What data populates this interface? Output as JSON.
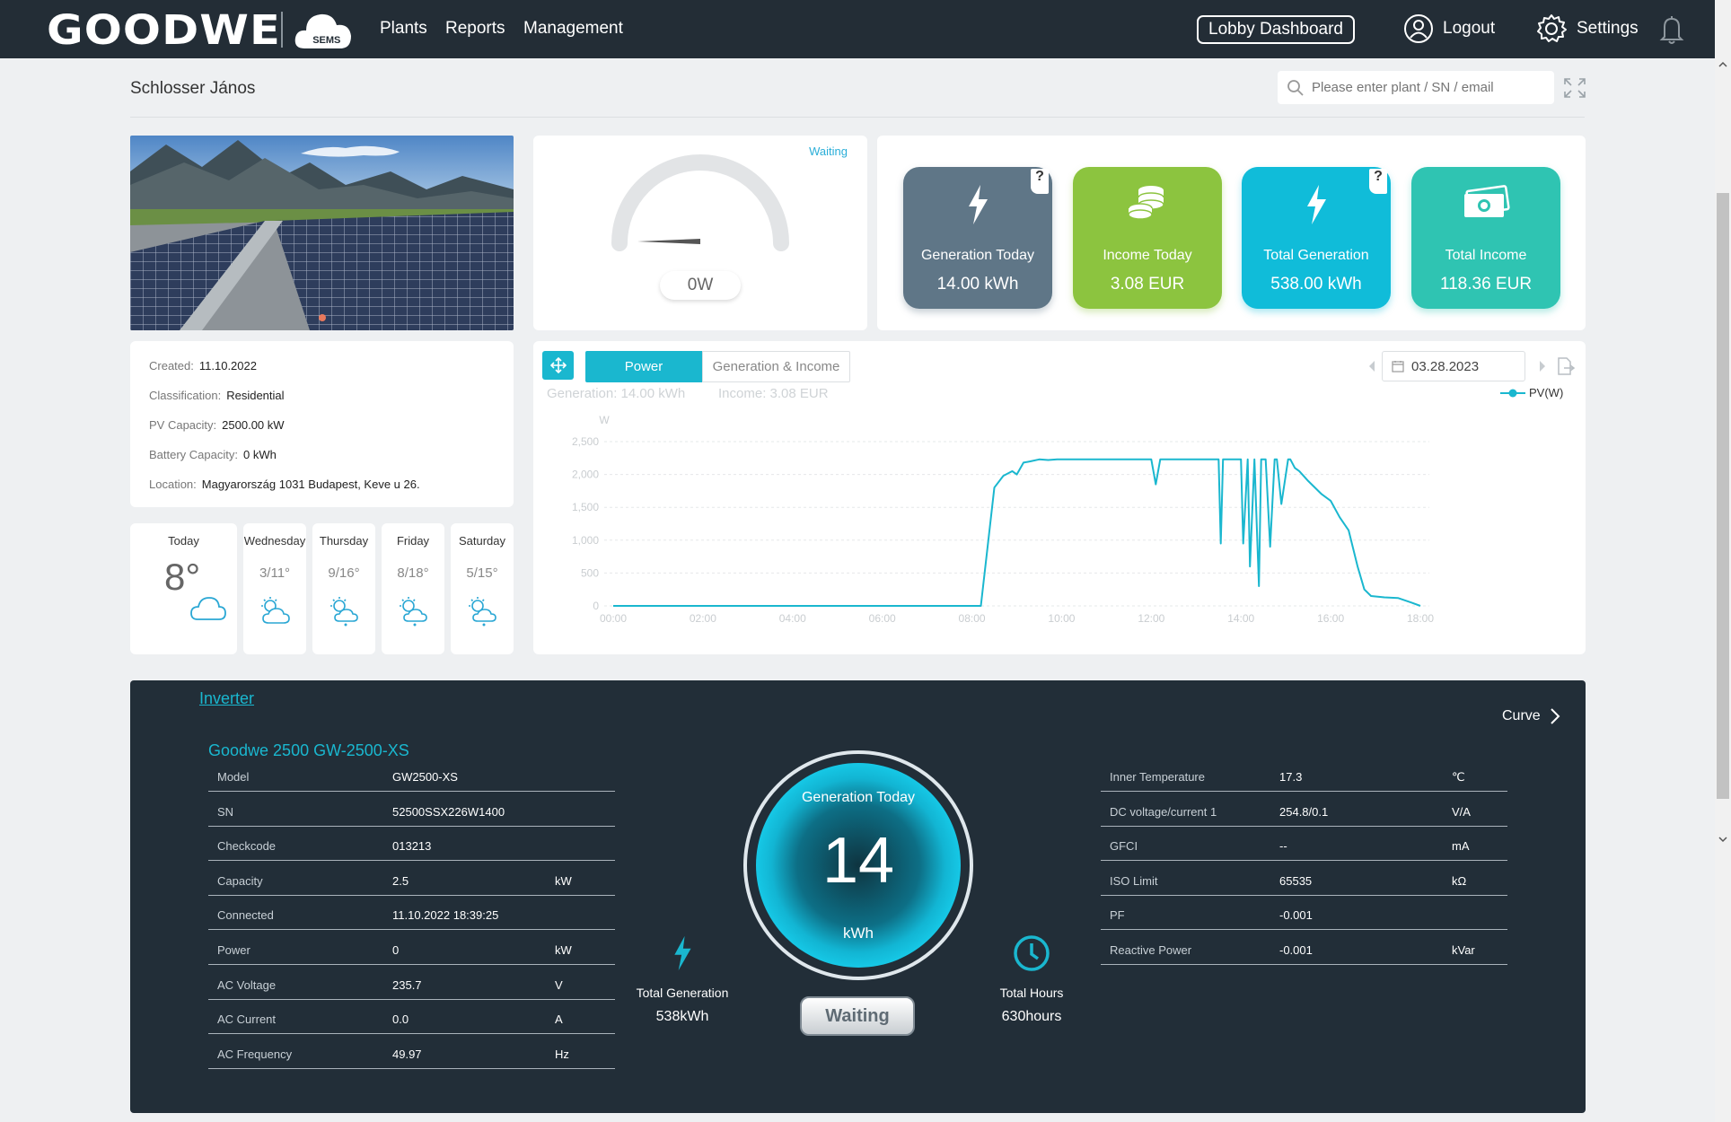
{
  "nav": {
    "logo": "GOODWE",
    "logo_sub": "SEMS",
    "links": [
      "Plants",
      "Reports",
      "Management"
    ],
    "lobby": "Lobby Dashboard",
    "logout": "Logout",
    "settings": "Settings"
  },
  "header": {
    "title": "Schlosser János",
    "search_placeholder": "Please enter plant / SN / email"
  },
  "info": {
    "created_label": "Created:",
    "created": "11.10.2022",
    "class_label": "Classification:",
    "classification": "Residential",
    "pv_label": "PV Capacity:",
    "pv_capacity": "2500.00 kW",
    "battery_label": "Battery Capacity:",
    "battery": "0 kWh",
    "location_label": "Location:",
    "location": "Magyarország 1031 Budapest, Keve u 26."
  },
  "weather": {
    "today_label": "Today",
    "today_temp": "8°",
    "days": [
      {
        "name": "Wednesday",
        "temp": "3/11°"
      },
      {
        "name": "Thursday",
        "temp": "9/16°"
      },
      {
        "name": "Friday",
        "temp": "8/18°"
      },
      {
        "name": "Saturday",
        "temp": "5/15°"
      }
    ]
  },
  "gauge": {
    "status": "Waiting",
    "value": "0W",
    "level": 0
  },
  "stats": [
    {
      "label": "Generation Today",
      "value": "14.00 kWh",
      "color": "#5f7687",
      "icon": "bolt-icon",
      "help": "?"
    },
    {
      "label": "Income Today",
      "value": "3.08 EUR",
      "color": "#8cc43f",
      "icon": "coins-icon"
    },
    {
      "label": "Total Generation",
      "value": "538.00 kWh",
      "color": "#10bcd9",
      "icon": "bolt-icon",
      "help": "?"
    },
    {
      "label": "Total Income",
      "value": "118.36 EUR",
      "color": "#2fc4b2",
      "icon": "money-icon"
    }
  ],
  "chart_panel": {
    "tab_power": "Power",
    "tab_gen": "Generation & Income",
    "summary_gen": "Generation: 14.00 kWh",
    "summary_income": "Income: 3.08 EUR",
    "date": "03.28.2023"
  },
  "chart_data": {
    "type": "line",
    "ylabel": "W",
    "ylim": [
      0,
      2500
    ],
    "xlim": [
      0,
      18
    ],
    "y_ticks": [
      "0",
      "500",
      "1,000",
      "1,500",
      "2,000",
      "2,500"
    ],
    "x_ticks": [
      "00:00",
      "02:00",
      "04:00",
      "06:00",
      "08:00",
      "10:00",
      "12:00",
      "14:00",
      "16:00",
      "18:00"
    ],
    "series": [
      {
        "name": "PV(W)",
        "color": "#1ab7cf",
        "x": [
          0,
          8.2,
          8.25,
          8.4,
          8.5,
          8.7,
          8.9,
          9.0,
          9.15,
          9.3,
          9.5,
          9.7,
          9.9,
          10.1,
          10.5,
          11.0,
          11.5,
          12.0,
          12.1,
          12.2,
          12.3,
          12.6,
          13.0,
          13.5,
          13.55,
          13.6,
          13.75,
          14.0,
          14.05,
          14.15,
          14.2,
          14.3,
          14.4,
          14.45,
          14.55,
          14.65,
          14.75,
          14.8,
          14.9,
          15.05,
          15.1,
          15.2,
          15.3,
          15.5,
          15.8,
          16.0,
          16.2,
          16.4,
          16.6,
          16.75,
          16.9,
          17.2,
          17.5,
          17.8,
          18.0
        ],
        "y": [
          0,
          0,
          300,
          1200,
          1800,
          1980,
          2050,
          2000,
          2180,
          2200,
          2230,
          2220,
          2230,
          2230,
          2230,
          2230,
          2230,
          2230,
          1850,
          2230,
          2230,
          2230,
          2230,
          2230,
          950,
          2230,
          2230,
          2230,
          950,
          2230,
          600,
          2230,
          300,
          2230,
          2230,
          900,
          2230,
          2230,
          1550,
          2230,
          2230,
          2100,
          2050,
          1900,
          1700,
          1600,
          1350,
          1150,
          600,
          250,
          150,
          130,
          120,
          50,
          0
        ]
      }
    ]
  },
  "inverter": {
    "link": "Inverter",
    "curve": "Curve",
    "device": "Goodwe 2500 GW-2500-XS",
    "left_rows": [
      {
        "k": "Model",
        "v": "GW2500-XS",
        "u": ""
      },
      {
        "k": "SN",
        "v": "52500SSX226W1400",
        "u": ""
      },
      {
        "k": "Checkcode",
        "v": "013213",
        "u": ""
      },
      {
        "k": "Capacity",
        "v": "2.5",
        "u": "kW"
      },
      {
        "k": "Connected",
        "v": "11.10.2022 18:39:25",
        "u": ""
      },
      {
        "k": "Power",
        "v": "0",
        "u": "kW"
      },
      {
        "k": "AC Voltage",
        "v": "235.7",
        "u": "V"
      },
      {
        "k": "AC Current",
        "v": "0.0",
        "u": "A"
      },
      {
        "k": "AC Frequency",
        "v": "49.97",
        "u": "Hz"
      }
    ],
    "right_rows": [
      {
        "k": "Inner Temperature",
        "v": "17.3",
        "u": "℃"
      },
      {
        "k": "DC voltage/current 1",
        "v": "254.8/0.1",
        "u": "V/A"
      },
      {
        "k": "GFCI",
        "v": "--",
        "u": "mA"
      },
      {
        "k": "ISO Limit",
        "v": "65535",
        "u": "kΩ"
      },
      {
        "k": "PF",
        "v": "-0.001",
        "u": ""
      },
      {
        "k": "Reactive Power",
        "v": "-0.001",
        "u": "kVar"
      }
    ],
    "ring_title": "Generation Today",
    "ring_value": "14",
    "ring_unit": "kWh",
    "status": "Waiting",
    "total_gen_label": "Total Generation",
    "total_gen": "538kWh",
    "total_hours_label": "Total Hours",
    "total_hours": "630hours"
  }
}
